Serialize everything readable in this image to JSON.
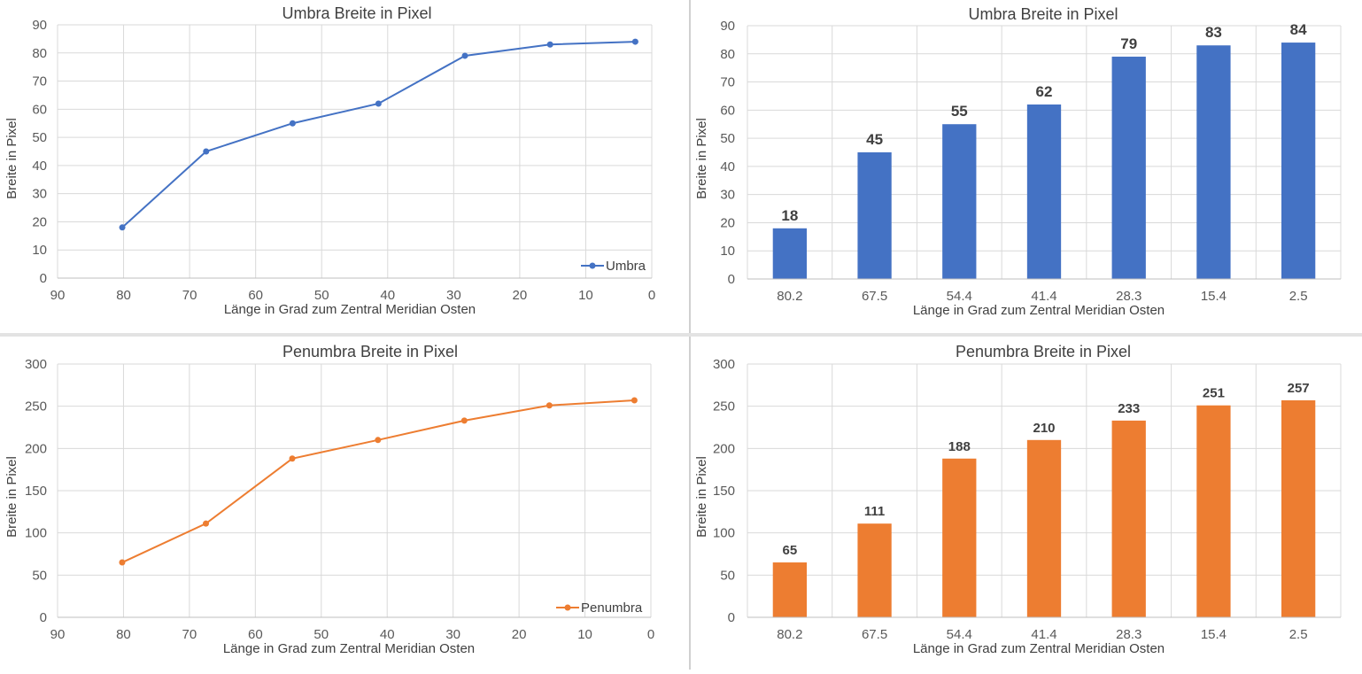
{
  "chart_data": [
    {
      "id": "umbra-line",
      "type": "line",
      "title": "Umbra Breite in Pixel",
      "xlabel": "Länge in Grad zum Zentral Meridian Osten",
      "ylabel": "Breite in Pixel",
      "xlim": [
        90,
        0
      ],
      "ylim": [
        0,
        90
      ],
      "x_ticks": [
        90,
        80,
        70,
        60,
        50,
        40,
        30,
        20,
        10,
        0
      ],
      "y_ticks": [
        0,
        10,
        20,
        30,
        40,
        50,
        60,
        70,
        80,
        90
      ],
      "series": [
        {
          "name": "Umbra",
          "color": "#4472C4",
          "x": [
            80.2,
            67.5,
            54.4,
            41.4,
            28.3,
            15.4,
            2.5
          ],
          "y": [
            18,
            45,
            55,
            62,
            79,
            83,
            84
          ]
        }
      ],
      "legend": "bottom-right",
      "grid": true
    },
    {
      "id": "umbra-bar",
      "type": "bar",
      "title": "Umbra Breite in Pixel",
      "xlabel": "Länge in Grad zum Zentral Meridian Osten",
      "ylabel": "Breite in Pixel",
      "categories": [
        "80.2",
        "67.5",
        "54.4",
        "41.4",
        "28.3",
        "15.4",
        "2.5"
      ],
      "values": [
        18,
        45,
        55,
        62,
        79,
        83,
        84
      ],
      "color": "#4472C4",
      "ylim": [
        0,
        90
      ],
      "y_ticks": [
        0,
        10,
        20,
        30,
        40,
        50,
        60,
        70,
        80,
        90
      ],
      "data_labels": true,
      "grid": true
    },
    {
      "id": "penumbra-line",
      "type": "line",
      "title": "Penumbra Breite in Pixel",
      "xlabel": "Länge in Grad zum Zentral Meridian Osten",
      "ylabel": "Breite in Pixel",
      "xlim": [
        90,
        0
      ],
      "ylim": [
        0,
        300
      ],
      "x_ticks": [
        90,
        80,
        70,
        60,
        50,
        40,
        30,
        20,
        10,
        0
      ],
      "y_ticks": [
        0,
        50,
        100,
        150,
        200,
        250,
        300
      ],
      "series": [
        {
          "name": "Penumbra",
          "color": "#ED7D31",
          "x": [
            80.2,
            67.5,
            54.4,
            41.4,
            28.3,
            15.4,
            2.5
          ],
          "y": [
            65,
            111,
            188,
            210,
            233,
            251,
            257
          ]
        }
      ],
      "legend": "bottom-right",
      "grid": true
    },
    {
      "id": "penumbra-bar",
      "type": "bar",
      "title": "Penumbra Breite in Pixel",
      "xlabel": "Länge in Grad zum Zentral Meridian Osten",
      "ylabel": "Breite in Pixel",
      "categories": [
        "80.2",
        "67.5",
        "54.4",
        "41.4",
        "28.3",
        "15.4",
        "2.5"
      ],
      "values": [
        65,
        111,
        188,
        210,
        233,
        251,
        257
      ],
      "color": "#ED7D31",
      "ylim": [
        0,
        300
      ],
      "y_ticks": [
        0,
        50,
        100,
        150,
        200,
        250,
        300
      ],
      "data_labels": true,
      "grid": true
    }
  ]
}
